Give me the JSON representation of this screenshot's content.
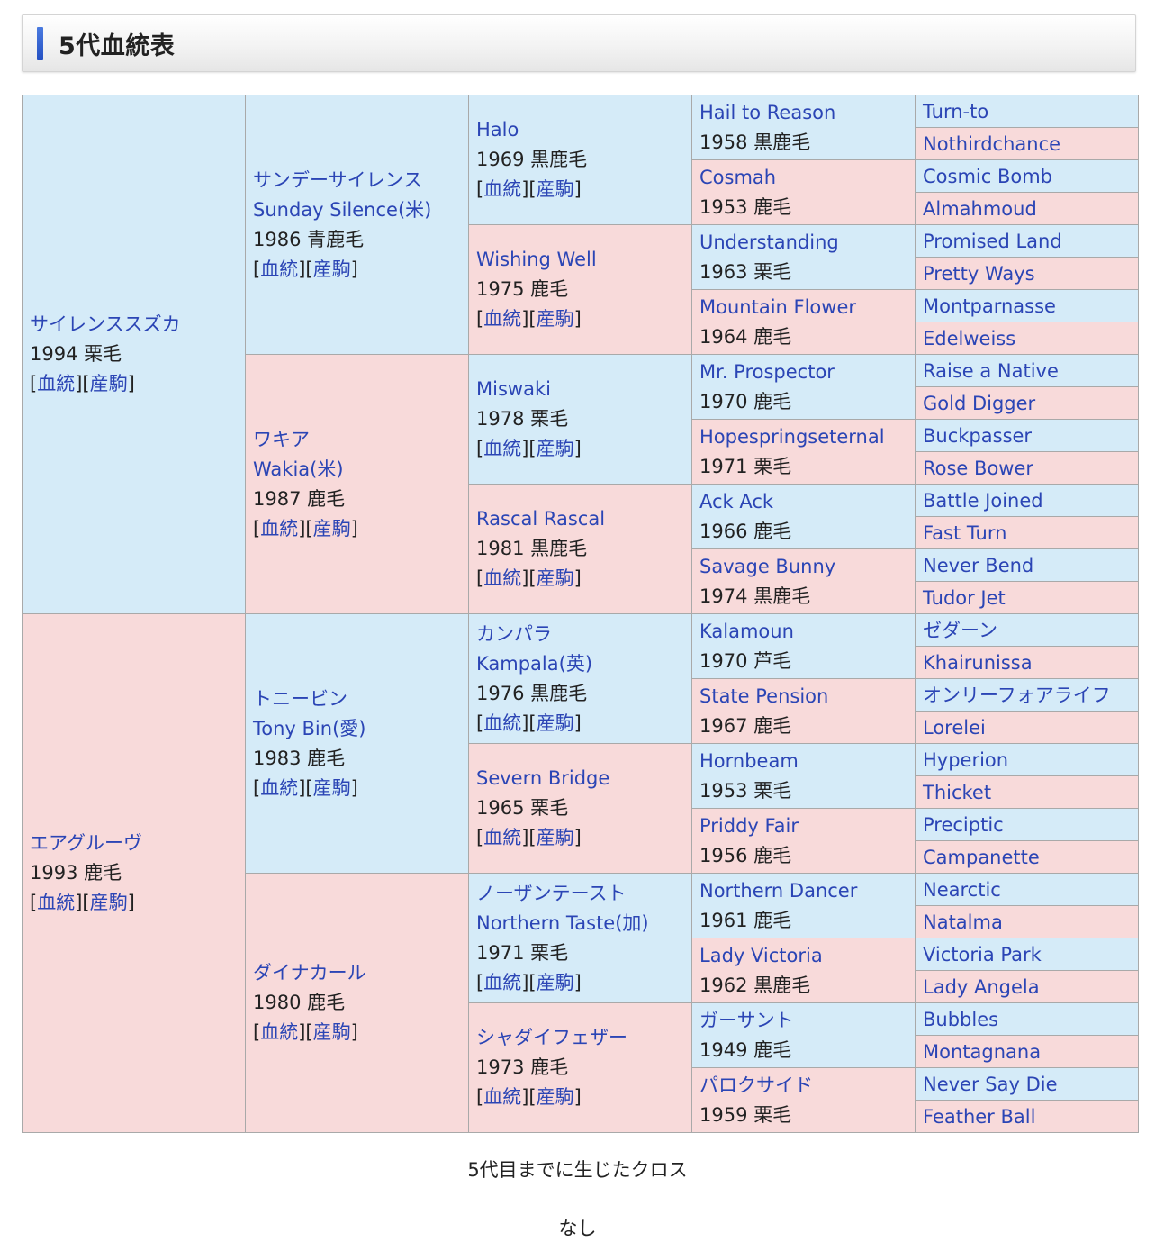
{
  "title": "5代血統表",
  "links": {
    "blood": "血統",
    "progeny": "産駒"
  },
  "colors": {
    "male_bg": "#d5ebf8",
    "female_bg": "#f8dada",
    "link": "#2b45b5",
    "accent_bar": "#2c5ad0"
  },
  "gen1": [
    {
      "jp": "サイレンススズカ",
      "info": "1994 栗毛",
      "sex": "male"
    },
    {
      "jp": "エアグルーヴ",
      "info": "1993 鹿毛",
      "sex": "female"
    }
  ],
  "gen2": [
    {
      "jp": "サンデーサイレンス",
      "en": "Sunday Silence(米)",
      "info": "1986 青鹿毛",
      "sex": "male"
    },
    {
      "jp": "ワキア",
      "en": "Wakia(米)",
      "info": "1987 鹿毛",
      "sex": "female"
    },
    {
      "jp": "トニービン",
      "en": "Tony Bin(愛)",
      "info": "1983 鹿毛",
      "sex": "male"
    },
    {
      "jp": "ダイナカール",
      "info": "1980 鹿毛",
      "sex": "female"
    }
  ],
  "gen3": [
    {
      "name": "Halo",
      "info": "1969 黒鹿毛",
      "sex": "male"
    },
    {
      "name": "Wishing Well",
      "info": "1975 鹿毛",
      "sex": "female"
    },
    {
      "name": "Miswaki",
      "info": "1978 栗毛",
      "sex": "male"
    },
    {
      "name": "Rascal Rascal",
      "info": "1981 黒鹿毛",
      "sex": "female"
    },
    {
      "name": "カンパラ",
      "en": "Kampala(英)",
      "info": "1976 黒鹿毛",
      "sex": "male"
    },
    {
      "name": "Severn Bridge",
      "info": "1965 栗毛",
      "sex": "female"
    },
    {
      "name": "ノーザンテースト",
      "en": "Northern Taste(加)",
      "info": "1971 栗毛",
      "sex": "male"
    },
    {
      "name": "シャダイフェザー",
      "info": "1973 鹿毛",
      "sex": "female"
    }
  ],
  "gen4": [
    {
      "name": "Hail to Reason",
      "info": "1958 黒鹿毛",
      "sex": "male"
    },
    {
      "name": "Cosmah",
      "info": "1953 鹿毛",
      "sex": "female"
    },
    {
      "name": "Understanding",
      "info": "1963 栗毛",
      "sex": "male"
    },
    {
      "name": "Mountain Flower",
      "info": "1964 鹿毛",
      "sex": "female"
    },
    {
      "name": "Mr. Prospector",
      "info": "1970 鹿毛",
      "sex": "male"
    },
    {
      "name": "Hopespringseternal",
      "info": "1971 栗毛",
      "sex": "female"
    },
    {
      "name": "Ack Ack",
      "info": "1966 鹿毛",
      "sex": "male"
    },
    {
      "name": "Savage Bunny",
      "info": "1974 黒鹿毛",
      "sex": "female"
    },
    {
      "name": "Kalamoun",
      "info": "1970 芦毛",
      "sex": "male"
    },
    {
      "name": "State Pension",
      "info": "1967 鹿毛",
      "sex": "female"
    },
    {
      "name": "Hornbeam",
      "info": "1953 栗毛",
      "sex": "male"
    },
    {
      "name": "Priddy Fair",
      "info": "1956 鹿毛",
      "sex": "female"
    },
    {
      "name": "Northern Dancer",
      "info": "1961 鹿毛",
      "sex": "male"
    },
    {
      "name": "Lady Victoria",
      "info": "1962 黒鹿毛",
      "sex": "female"
    },
    {
      "name": "ガーサント",
      "info": "1949 鹿毛",
      "sex": "male"
    },
    {
      "name": "パロクサイド",
      "info": "1959 栗毛",
      "sex": "female"
    }
  ],
  "gen5": [
    "Turn-to",
    "Nothirdchance",
    "Cosmic Bomb",
    "Almahmoud",
    "Promised Land",
    "Pretty Ways",
    "Montparnasse",
    "Edelweiss",
    "Raise a Native",
    "Gold Digger",
    "Buckpasser",
    "Rose Bower",
    "Battle Joined",
    "Fast Turn",
    "Never Bend",
    "Tudor Jet",
    "ゼダーン",
    "Khairunissa",
    "オンリーフォアライフ",
    "Lorelei",
    "Hyperion",
    "Thicket",
    "Preciptic",
    "Campanette",
    "Nearctic",
    "Natalma",
    "Victoria Park",
    "Lady Angela",
    "Bubbles",
    "Montagnana",
    "Never Say Die",
    "Feather Ball"
  ],
  "cross": {
    "label": "5代目までに生じたクロス",
    "value": "なし"
  }
}
